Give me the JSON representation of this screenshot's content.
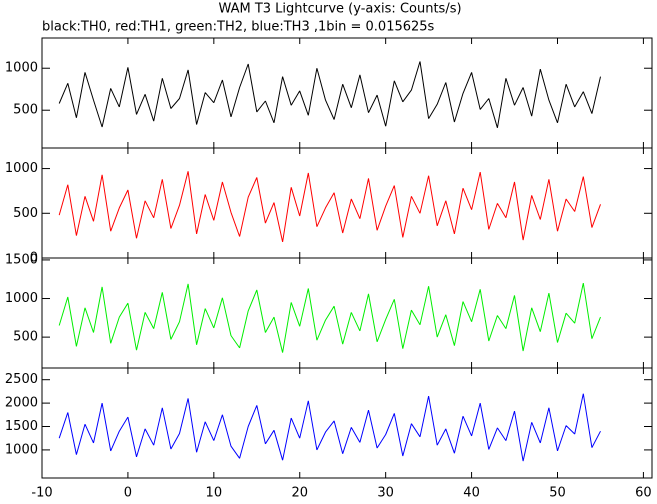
{
  "chart_data": {
    "type": "line",
    "title": "WAM T3 Lightcurve (y-axis: Counts/s)",
    "subtitle": "black:TH0, red:TH1, green:TH2, blue:TH3 ,1bin = 0.015625s",
    "x": [
      -8,
      -7,
      -6,
      -5,
      -4,
      -3,
      -2,
      -1,
      0,
      1,
      2,
      3,
      4,
      5,
      6,
      7,
      8,
      9,
      10,
      11,
      12,
      13,
      14,
      15,
      16,
      17,
      18,
      19,
      20,
      21,
      22,
      23,
      24,
      25,
      26,
      27,
      28,
      29,
      30,
      31,
      32,
      33,
      34,
      35,
      36,
      37,
      38,
      39,
      40,
      41,
      42,
      43,
      44,
      45,
      46,
      47,
      48,
      49,
      50,
      51,
      52,
      53,
      54,
      55
    ],
    "xlim": [
      -10,
      61
    ],
    "xticks": [
      -10,
      0,
      10,
      20,
      30,
      40,
      50,
      60
    ],
    "panels": [
      {
        "ylim": [
          50,
          1360
        ],
        "yticks": [
          500,
          1000
        ],
        "series": [
          {
            "color": "#000000",
            "values": [
              580,
              820,
              410,
              950,
              620,
              300,
              760,
              540,
              1010,
              450,
              690,
              370,
              880,
              520,
              640,
              980,
              330,
              710,
              590,
              860,
              420,
              770,
              1050,
              480,
              610,
              350,
              900,
              560,
              730,
              440,
              1000,
              620,
              390,
              810,
              530,
              920,
              470,
              680,
              310,
              850,
              600,
              740,
              1080,
              400,
              570,
              830,
              360,
              700,
              950,
              510,
              640,
              290,
              880,
              560,
              770,
              430,
              990,
              620,
              350,
              810,
              540,
              720,
              460,
              900
            ]
          }
        ]
      },
      {
        "ylim": [
          0,
          1230
        ],
        "yticks": [
          0,
          500,
          1000
        ],
        "series": [
          {
            "color": "#ff0000",
            "values": [
              480,
              820,
              250,
              690,
              410,
              930,
              300,
              560,
              760,
              220,
              640,
              450,
              880,
              330,
              590,
              970,
              270,
              710,
              420,
              850,
              510,
              240,
              680,
              900,
              390,
              620,
              180,
              790,
              470,
              950,
              350,
              560,
              730,
              280,
              660,
              440,
              890,
              310,
              580,
              810,
              230,
              690,
              500,
              920,
              360,
              640,
              270,
              780,
              540,
              960,
              320,
              610,
              450,
              850,
              200,
              700,
              430,
              880,
              300,
              660,
              520,
              910,
              340,
              600
            ]
          }
        ]
      },
      {
        "ylim": [
          100,
          1525
        ],
        "yticks": [
          500,
          1000,
          1500
        ],
        "series": [
          {
            "color": "#00ee00",
            "values": [
              650,
              1020,
              380,
              880,
              560,
              1150,
              420,
              760,
              940,
              330,
              820,
              610,
              1080,
              470,
              700,
              1190,
              400,
              870,
              620,
              1010,
              520,
              360,
              840,
              1110,
              560,
              760,
              300,
              950,
              640,
              1130,
              460,
              720,
              900,
              410,
              820,
              580,
              1060,
              440,
              730,
              990,
              350,
              850,
              660,
              1160,
              500,
              790,
              390,
              960,
              700,
              1120,
              450,
              780,
              610,
              1040,
              320,
              880,
              570,
              1070,
              430,
              810,
              680,
              1200,
              480,
              760
            ]
          }
        ]
      },
      {
        "ylim": [
          400,
          2750
        ],
        "yticks": [
          1000,
          1500,
          2000,
          2500
        ],
        "series": [
          {
            "color": "#0000ff",
            "values": [
              1250,
              1800,
              900,
              1550,
              1150,
              2000,
              980,
              1400,
              1700,
              850,
              1450,
              1100,
              1900,
              1020,
              1350,
              2100,
              950,
              1600,
              1200,
              1750,
              1080,
              820,
              1500,
              1950,
              1130,
              1420,
              780,
              1680,
              1250,
              2050,
              1000,
              1380,
              1620,
              920,
              1480,
              1160,
              1850,
              1040,
              1330,
              1780,
              870,
              1560,
              1280,
              2150,
              1100,
              1450,
              930,
              1720,
              1300,
              2000,
              1010,
              1470,
              1200,
              1830,
              760,
              1590,
              1150,
              1900,
              980,
              1520,
              1340,
              2200,
              1050,
              1400
            ]
          }
        ]
      }
    ]
  }
}
